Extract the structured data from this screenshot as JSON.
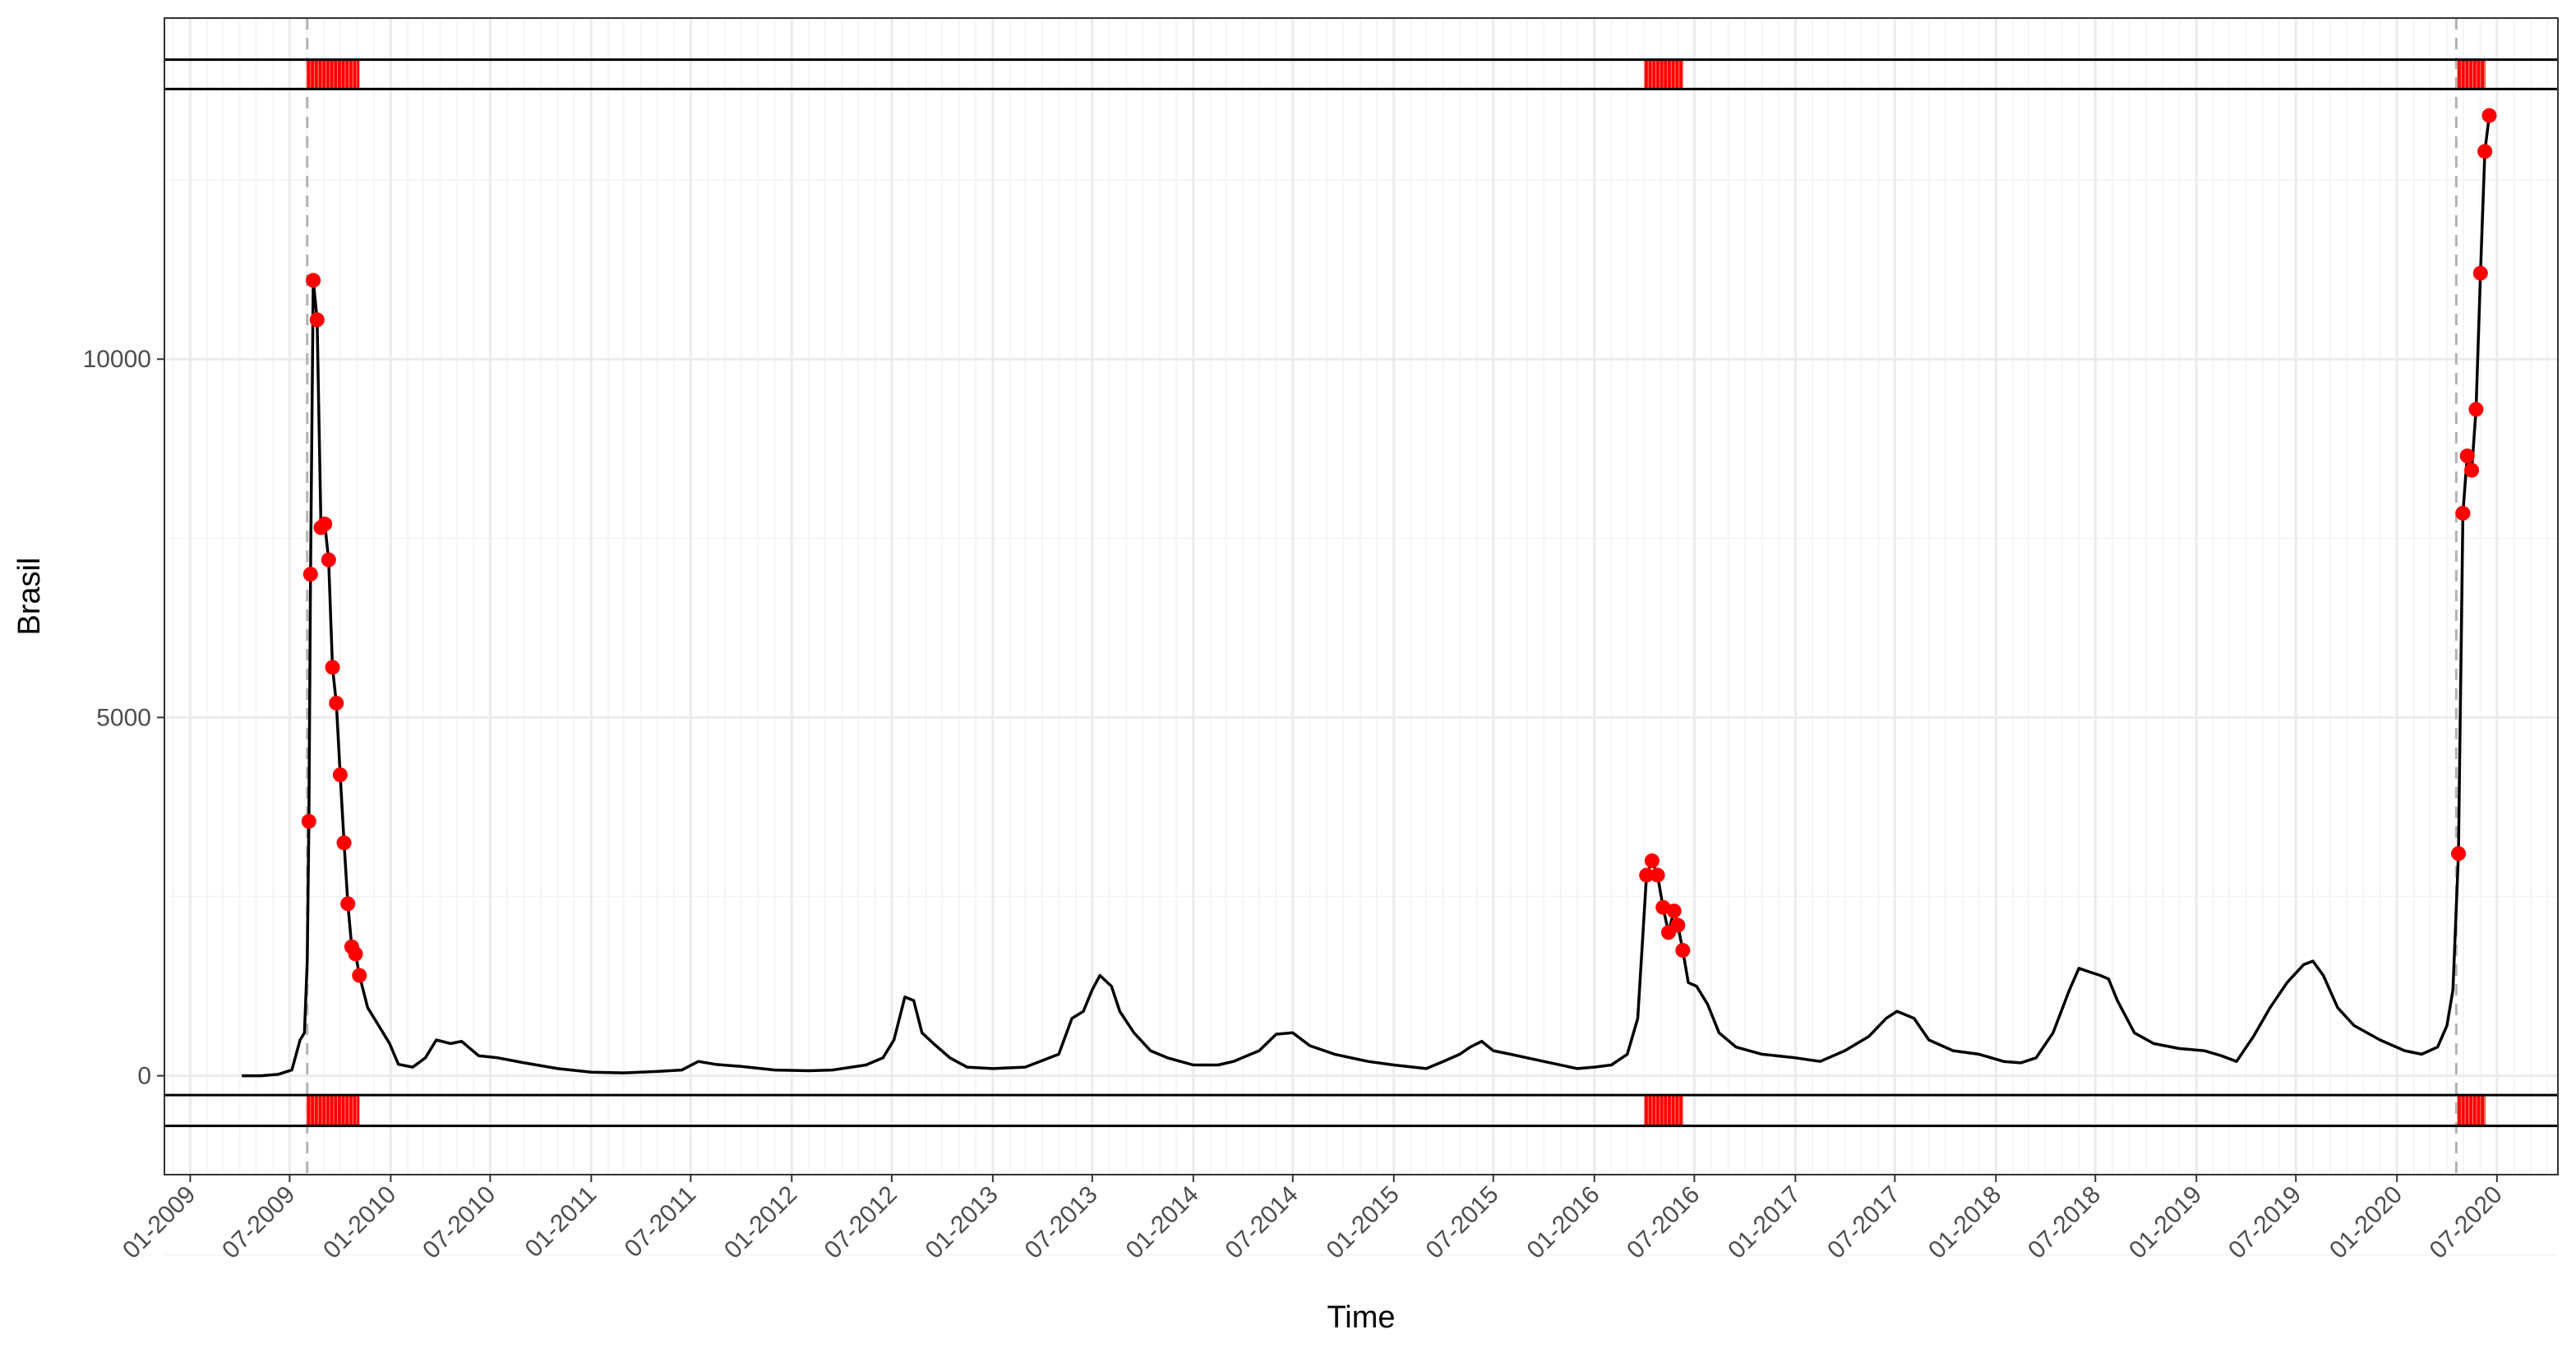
{
  "chart_data": {
    "type": "line",
    "xlabel": "Time",
    "ylabel": "Brasil",
    "x_range": [
      "2008-11-15",
      "2020-10-20"
    ],
    "ylim": [
      -1380,
      14760
    ],
    "grid": true,
    "y_ticks": [
      0,
      5000,
      10000
    ],
    "x_ticks": [
      "01-2009",
      "07-2009",
      "01-2010",
      "07-2010",
      "01-2011",
      "07-2011",
      "01-2012",
      "07-2012",
      "01-2013",
      "07-2013",
      "01-2014",
      "07-2014",
      "01-2015",
      "07-2015",
      "01-2016",
      "07-2016",
      "01-2017",
      "07-2017",
      "01-2018",
      "07-2018",
      "01-2019",
      "07-2019",
      "01-2020",
      "07-2020"
    ],
    "series": [
      {
        "color": "#000000",
        "points": [
          [
            "2009-04-05",
            0
          ],
          [
            "2009-05-10",
            0
          ],
          [
            "2009-06-10",
            20
          ],
          [
            "2009-07-05",
            80
          ],
          [
            "2009-07-20",
            500
          ],
          [
            "2009-07-28",
            600
          ],
          [
            "2009-08-02",
            1600
          ],
          [
            "2009-08-05",
            3550
          ],
          [
            "2009-08-08",
            7000
          ],
          [
            "2009-08-13",
            11100
          ],
          [
            "2009-08-20",
            10550
          ],
          [
            "2009-08-27",
            7650
          ],
          [
            "2009-09-03",
            7700
          ],
          [
            "2009-09-10",
            7200
          ],
          [
            "2009-09-17",
            5700
          ],
          [
            "2009-09-24",
            5200
          ],
          [
            "2009-10-01",
            4200
          ],
          [
            "2009-10-08",
            3250
          ],
          [
            "2009-10-15",
            2400
          ],
          [
            "2009-10-22",
            1800
          ],
          [
            "2009-10-29",
            1700
          ],
          [
            "2009-11-05",
            1400
          ],
          [
            "2009-11-20",
            950
          ],
          [
            "2009-12-10",
            700
          ],
          [
            "2009-12-30",
            450
          ],
          [
            "2010-01-15",
            160
          ],
          [
            "2010-02-10",
            120
          ],
          [
            "2010-03-05",
            250
          ],
          [
            "2010-03-25",
            500
          ],
          [
            "2010-04-20",
            450
          ],
          [
            "2010-05-10",
            480
          ],
          [
            "2010-06-10",
            280
          ],
          [
            "2010-07-15",
            250
          ],
          [
            "2010-09-01",
            180
          ],
          [
            "2010-11-01",
            100
          ],
          [
            "2011-01-01",
            50
          ],
          [
            "2011-03-01",
            40
          ],
          [
            "2011-05-01",
            60
          ],
          [
            "2011-06-15",
            80
          ],
          [
            "2011-07-15",
            200
          ],
          [
            "2011-08-15",
            160
          ],
          [
            "2011-10-01",
            130
          ],
          [
            "2011-12-01",
            80
          ],
          [
            "2012-02-01",
            70
          ],
          [
            "2012-03-15",
            80
          ],
          [
            "2012-05-15",
            150
          ],
          [
            "2012-06-15",
            250
          ],
          [
            "2012-07-05",
            500
          ],
          [
            "2012-07-25",
            1100
          ],
          [
            "2012-08-10",
            1050
          ],
          [
            "2012-08-25",
            600
          ],
          [
            "2012-09-15",
            450
          ],
          [
            "2012-10-15",
            250
          ],
          [
            "2012-11-15",
            120
          ],
          [
            "2013-01-01",
            100
          ],
          [
            "2013-03-01",
            120
          ],
          [
            "2013-05-01",
            300
          ],
          [
            "2013-05-25",
            800
          ],
          [
            "2013-06-15",
            900
          ],
          [
            "2013-07-01",
            1200
          ],
          [
            "2013-07-15",
            1400
          ],
          [
            "2013-08-05",
            1250
          ],
          [
            "2013-08-20",
            900
          ],
          [
            "2013-09-15",
            600
          ],
          [
            "2013-10-15",
            350
          ],
          [
            "2013-11-15",
            250
          ],
          [
            "2014-01-01",
            150
          ],
          [
            "2014-02-15",
            150
          ],
          [
            "2014-03-15",
            200
          ],
          [
            "2014-05-01",
            350
          ],
          [
            "2014-06-01",
            580
          ],
          [
            "2014-07-01",
            600
          ],
          [
            "2014-08-01",
            420
          ],
          [
            "2014-09-15",
            300
          ],
          [
            "2014-11-15",
            200
          ],
          [
            "2015-01-01",
            150
          ],
          [
            "2015-03-01",
            100
          ],
          [
            "2015-04-01",
            200
          ],
          [
            "2015-05-01",
            300
          ],
          [
            "2015-05-20",
            400
          ],
          [
            "2015-06-10",
            480
          ],
          [
            "2015-07-01",
            350
          ],
          [
            "2015-08-01",
            300
          ],
          [
            "2015-10-01",
            200
          ],
          [
            "2015-12-01",
            100
          ],
          [
            "2016-01-01",
            120
          ],
          [
            "2016-02-01",
            150
          ],
          [
            "2016-03-01",
            300
          ],
          [
            "2016-03-20",
            800
          ],
          [
            "2016-04-05",
            2800
          ],
          [
            "2016-04-15",
            3000
          ],
          [
            "2016-04-25",
            2800
          ],
          [
            "2016-05-05",
            2350
          ],
          [
            "2016-05-15",
            2000
          ],
          [
            "2016-05-25",
            2300
          ],
          [
            "2016-06-01",
            2100
          ],
          [
            "2016-06-10",
            1750
          ],
          [
            "2016-06-20",
            1300
          ],
          [
            "2016-07-05",
            1250
          ],
          [
            "2016-07-25",
            1000
          ],
          [
            "2016-08-15",
            600
          ],
          [
            "2016-09-15",
            400
          ],
          [
            "2016-11-01",
            300
          ],
          [
            "2017-01-01",
            250
          ],
          [
            "2017-02-15",
            200
          ],
          [
            "2017-04-01",
            350
          ],
          [
            "2017-05-15",
            550
          ],
          [
            "2017-06-15",
            800
          ],
          [
            "2017-07-05",
            900
          ],
          [
            "2017-08-05",
            800
          ],
          [
            "2017-09-01",
            500
          ],
          [
            "2017-10-15",
            350
          ],
          [
            "2017-12-01",
            300
          ],
          [
            "2018-01-15",
            200
          ],
          [
            "2018-02-15",
            180
          ],
          [
            "2018-03-15",
            250
          ],
          [
            "2018-04-15",
            600
          ],
          [
            "2018-05-15",
            1200
          ],
          [
            "2018-06-01",
            1500
          ],
          [
            "2018-06-20",
            1450
          ],
          [
            "2018-07-10",
            1400
          ],
          [
            "2018-07-25",
            1350
          ],
          [
            "2018-08-10",
            1050
          ],
          [
            "2018-09-10",
            600
          ],
          [
            "2018-10-15",
            450
          ],
          [
            "2018-12-01",
            380
          ],
          [
            "2019-01-15",
            350
          ],
          [
            "2019-02-15",
            280
          ],
          [
            "2019-03-15",
            200
          ],
          [
            "2019-04-15",
            550
          ],
          [
            "2019-05-15",
            950
          ],
          [
            "2019-06-15",
            1300
          ],
          [
            "2019-07-15",
            1550
          ],
          [
            "2019-08-01",
            1600
          ],
          [
            "2019-08-20",
            1400
          ],
          [
            "2019-09-15",
            950
          ],
          [
            "2019-10-15",
            700
          ],
          [
            "2019-12-01",
            500
          ],
          [
            "2020-01-15",
            350
          ],
          [
            "2020-02-15",
            300
          ],
          [
            "2020-03-15",
            400
          ],
          [
            "2020-04-01",
            700
          ],
          [
            "2020-04-12",
            1200
          ],
          [
            "2020-04-22",
            3100
          ],
          [
            "2020-04-30",
            7850
          ],
          [
            "2020-05-08",
            8650
          ],
          [
            "2020-05-16",
            8450
          ],
          [
            "2020-05-24",
            9300
          ],
          [
            "2020-06-01",
            11200
          ],
          [
            "2020-06-09",
            12900
          ],
          [
            "2020-06-17",
            13400
          ]
        ]
      }
    ],
    "highlighted_points": [
      [
        "2009-08-05",
        3550
      ],
      [
        "2009-08-08",
        7000
      ],
      [
        "2009-08-13",
        11100
      ],
      [
        "2009-08-20",
        10550
      ],
      [
        "2009-08-27",
        7650
      ],
      [
        "2009-09-03",
        7700
      ],
      [
        "2009-09-10",
        7200
      ],
      [
        "2009-09-17",
        5700
      ],
      [
        "2009-09-24",
        5200
      ],
      [
        "2009-10-01",
        4200
      ],
      [
        "2009-10-08",
        3250
      ],
      [
        "2009-10-15",
        2400
      ],
      [
        "2009-10-22",
        1800
      ],
      [
        "2009-10-29",
        1700
      ],
      [
        "2009-11-05",
        1400
      ],
      [
        "2016-04-05",
        2800
      ],
      [
        "2016-04-15",
        3000
      ],
      [
        "2016-04-25",
        2800
      ],
      [
        "2016-05-05",
        2350
      ],
      [
        "2016-05-15",
        2000
      ],
      [
        "2016-05-25",
        2300
      ],
      [
        "2016-06-01",
        2100
      ],
      [
        "2016-06-10",
        1750
      ],
      [
        "2020-04-22",
        3100
      ],
      [
        "2020-04-30",
        7850
      ],
      [
        "2020-05-08",
        8650
      ],
      [
        "2020-05-16",
        8450
      ],
      [
        "2020-05-24",
        9300
      ],
      [
        "2020-06-01",
        11200
      ],
      [
        "2020-06-09",
        12900
      ],
      [
        "2020-06-17",
        13400
      ]
    ],
    "highlight_periods": [
      [
        "2009-08-01",
        "2009-11-05"
      ],
      [
        "2016-04-01",
        "2016-06-10"
      ],
      [
        "2020-04-20",
        "2020-06-10"
      ]
    ],
    "reference_lines_x": [
      "2009-08-02",
      "2020-04-18"
    ],
    "band_top_y": [
      13770,
      14180
    ],
    "band_bottom_y": [
      -700,
      -270
    ],
    "colors": {
      "line": "#000000",
      "points": "#ff0000",
      "highlight": "#ff0000",
      "reference_line": "#b3b3b3",
      "grid_major": "#ebebeb",
      "grid_minor": "#f5f5f5",
      "panel_border": "#333333"
    }
  }
}
